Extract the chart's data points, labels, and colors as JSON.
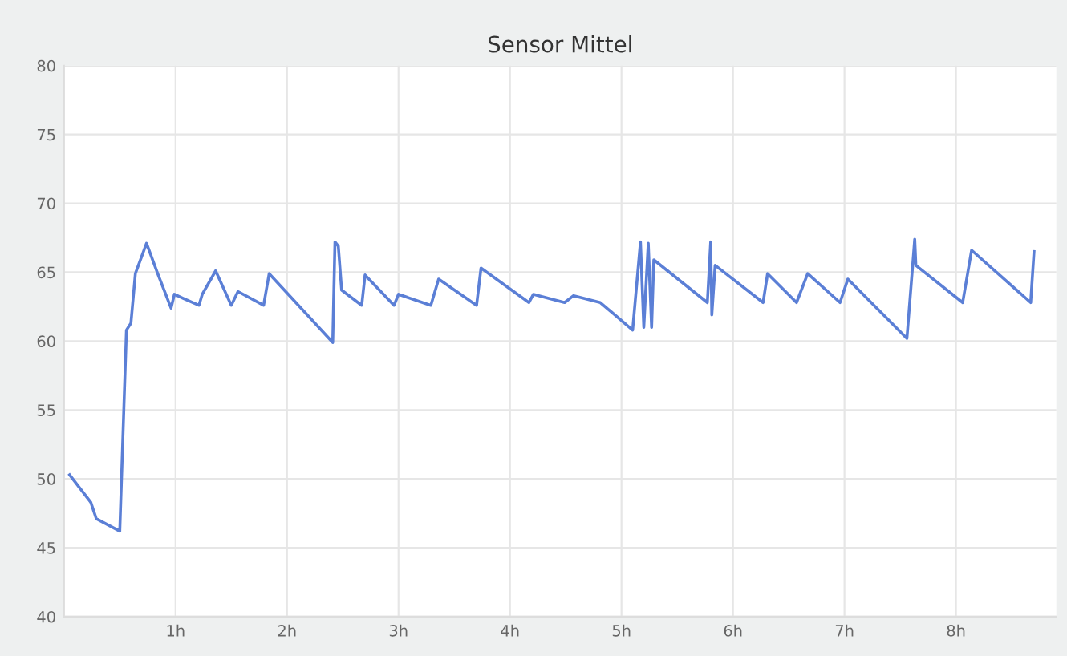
{
  "chart_data": {
    "type": "line",
    "title": "Sensor Mittel",
    "x": [
      0.05,
      0.24,
      0.29,
      0.5,
      0.56,
      0.6,
      0.64,
      0.74,
      0.84,
      0.96,
      0.99,
      1.07,
      1.21,
      1.24,
      1.36,
      1.5,
      1.56,
      1.79,
      1.84,
      2.41,
      2.43,
      2.46,
      2.49,
      2.67,
      2.7,
      2.96,
      3.0,
      3.29,
      3.36,
      3.7,
      3.74,
      4.17,
      4.21,
      4.49,
      4.57,
      4.81,
      5.1,
      5.17,
      5.2,
      5.24,
      5.27,
      5.29,
      5.77,
      5.8,
      5.81,
      5.84,
      6.27,
      6.31,
      6.57,
      6.67,
      6.96,
      7.03,
      7.56,
      7.63,
      7.64,
      8.06,
      8.14,
      8.67,
      8.7
    ],
    "series": [
      {
        "color": "#5b7fd6",
        "values": [
          50.3,
          48.3,
          47.1,
          46.2,
          60.8,
          61.3,
          64.9,
          67.1,
          64.9,
          62.4,
          63.4,
          63.1,
          62.6,
          63.4,
          65.1,
          62.6,
          63.6,
          62.6,
          64.9,
          59.9,
          67.2,
          66.9,
          63.7,
          62.6,
          64.8,
          62.6,
          63.4,
          62.6,
          64.5,
          62.6,
          65.3,
          62.8,
          63.4,
          62.8,
          63.3,
          62.8,
          60.8,
          67.2,
          61.0,
          67.1,
          61.0,
          65.9,
          62.8,
          67.2,
          61.9,
          65.5,
          62.8,
          64.9,
          62.8,
          64.9,
          62.8,
          64.5,
          60.2,
          67.4,
          65.5,
          62.8,
          66.6,
          62.8,
          66.5
        ]
      }
    ],
    "xlim": [
      0,
      8.9
    ],
    "ylim": [
      40,
      80
    ],
    "xticks": [
      {
        "value": 1,
        "label": "1h"
      },
      {
        "value": 2,
        "label": "2h"
      },
      {
        "value": 3,
        "label": "3h"
      },
      {
        "value": 4,
        "label": "4h"
      },
      {
        "value": 5,
        "label": "5h"
      },
      {
        "value": 6,
        "label": "6h"
      },
      {
        "value": 7,
        "label": "7h"
      },
      {
        "value": 8,
        "label": "8h"
      }
    ],
    "yticks": [
      40,
      45,
      50,
      55,
      60,
      65,
      70,
      75,
      80
    ],
    "grid": true,
    "marker": "none",
    "line_style": "solid"
  }
}
